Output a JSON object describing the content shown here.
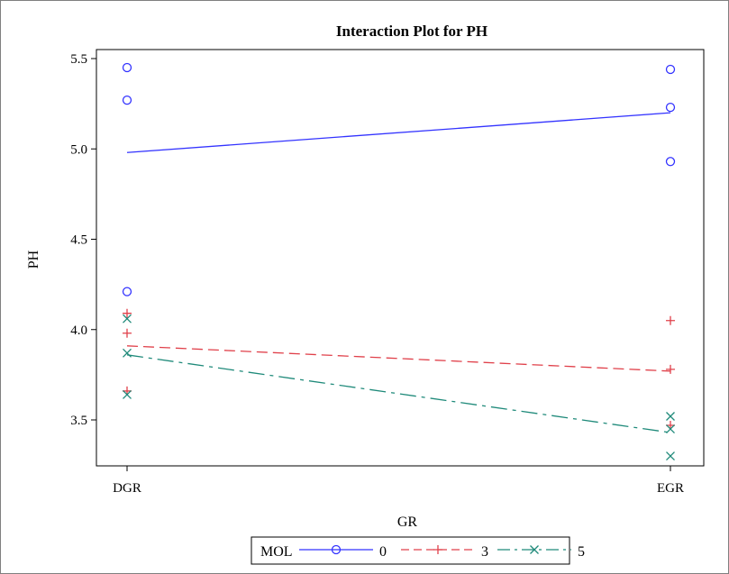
{
  "chart_data": {
    "type": "line",
    "title": "Interaction Plot for PH",
    "xlabel": "GR",
    "ylabel": "PH",
    "categories": [
      "DGR",
      "EGR"
    ],
    "ylim": [
      3.25,
      5.55
    ],
    "yticks": [
      "3.5",
      "4.0",
      "4.5",
      "5.0",
      "5.5"
    ],
    "legend": {
      "title": "MOL",
      "placement": "bottom"
    },
    "series": [
      {
        "name": "0",
        "color": "#3333ff",
        "marker": "circle",
        "line_style": "solid",
        "means": [
          4.98,
          5.2
        ],
        "points": {
          "DGR": [
            5.45,
            5.27,
            4.21
          ],
          "EGR": [
            5.44,
            5.23,
            4.93
          ]
        }
      },
      {
        "name": "3",
        "color": "#e0404a",
        "marker": "plus",
        "line_style": "dashed",
        "means": [
          3.91,
          3.77
        ],
        "points": {
          "DGR": [
            4.09,
            3.98,
            3.66
          ],
          "EGR": [
            4.05,
            3.78,
            3.47
          ]
        }
      },
      {
        "name": "5",
        "color": "#1f8a7a",
        "marker": "x",
        "line_style": "dashdot",
        "means": [
          3.86,
          3.43
        ],
        "points": {
          "DGR": [
            4.06,
            3.87,
            3.64
          ],
          "EGR": [
            3.52,
            3.45,
            3.3
          ]
        }
      }
    ]
  }
}
